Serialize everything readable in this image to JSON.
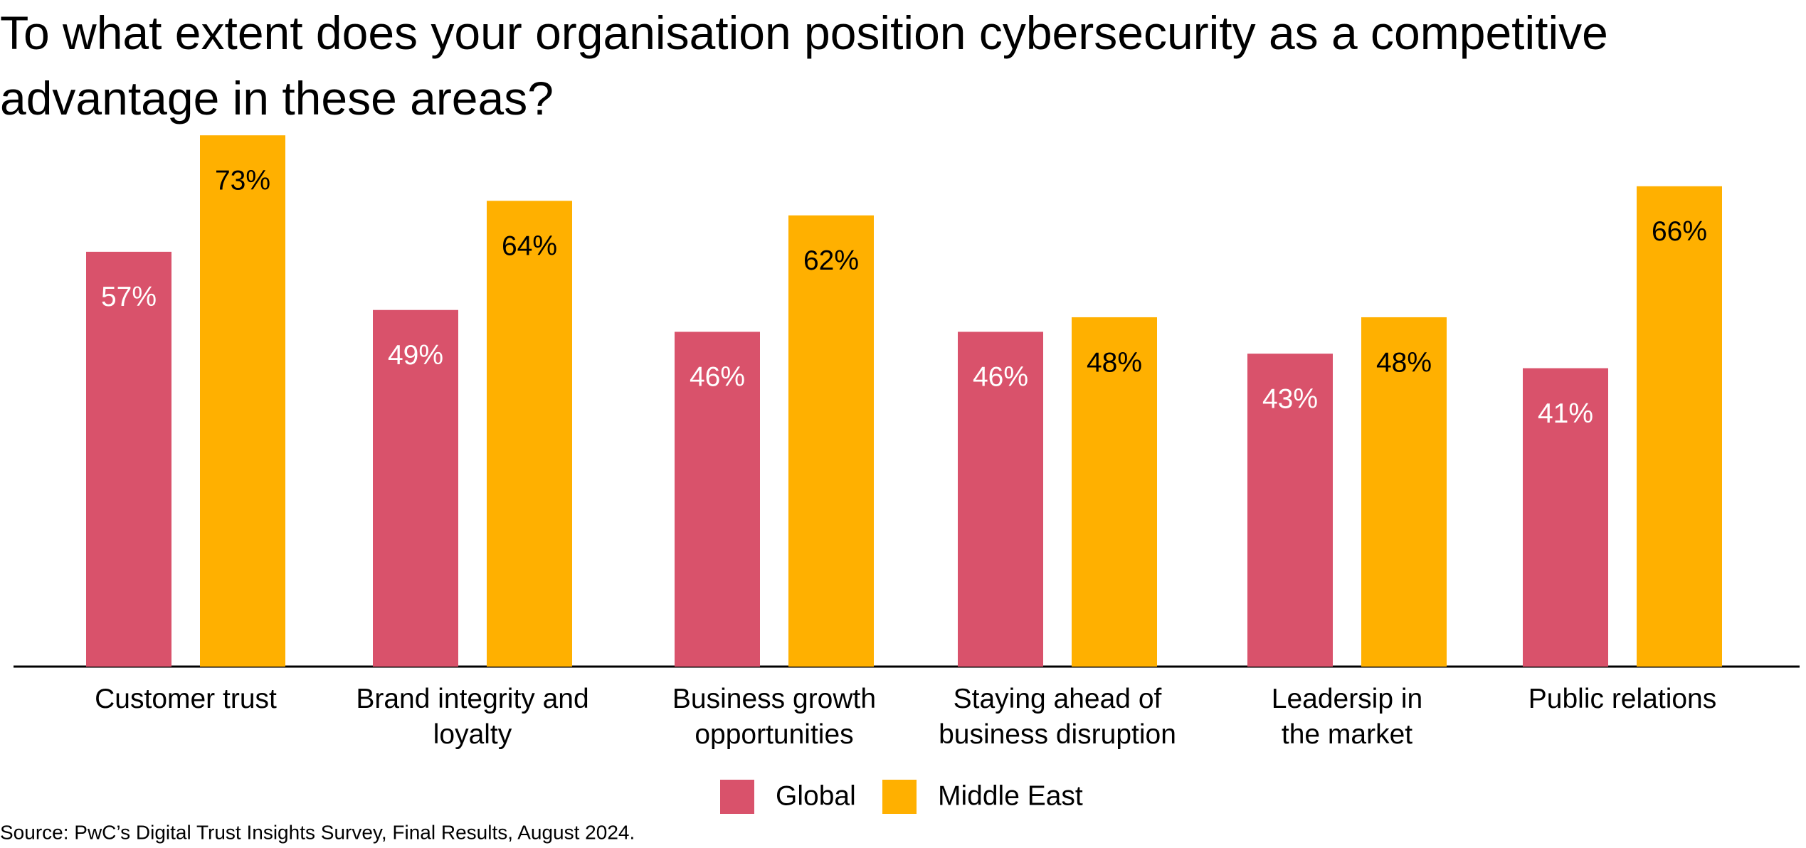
{
  "chart_data": {
    "type": "bar",
    "title": "To what extent does your organisation position cybersecurity as a competitive advantage in these areas?",
    "categories": [
      "Customer trust",
      "Brand integrity and\nloyalty",
      "Business growth\nopportunities",
      "Staying ahead of\nbusiness disruption",
      "Leadersip in\nthe market",
      "Public relations"
    ],
    "series": [
      {
        "name": "Global",
        "color": "#d9526b",
        "values": [
          57,
          49,
          46,
          46,
          43,
          41
        ],
        "value_labels": [
          "57%",
          "49%",
          "46%",
          "46%",
          "43%",
          "41%"
        ]
      },
      {
        "name": "Middle East",
        "color": "#ffb000",
        "values": [
          73,
          64,
          62,
          48,
          48,
          66
        ],
        "value_labels": [
          "73%",
          "64%",
          "62%",
          "48%",
          "48%",
          "66%"
        ]
      }
    ],
    "source": "Source: PwC’s Digital Trust Insights Survey, Final Results, August 2024."
  }
}
